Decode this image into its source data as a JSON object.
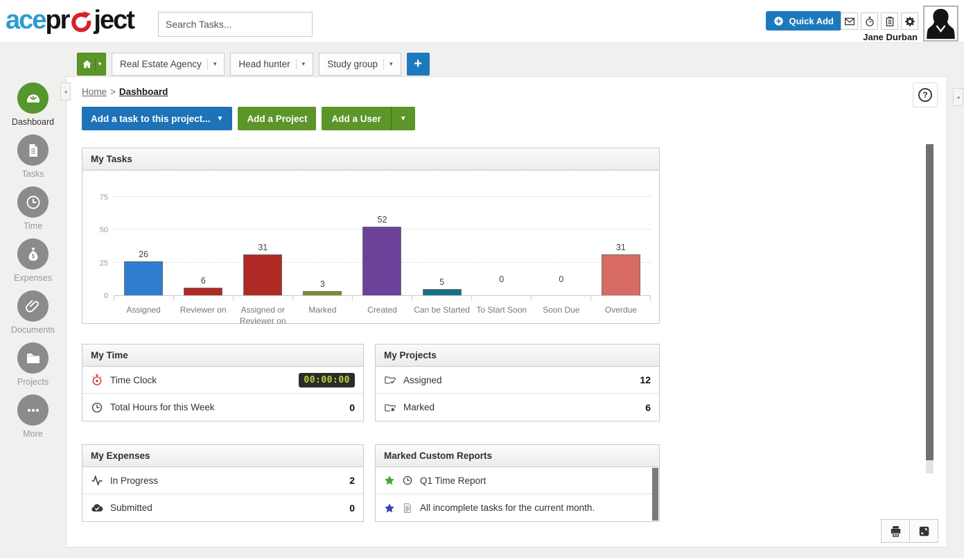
{
  "header": {
    "logo": {
      "ace": "ace",
      "pr": "pr",
      "ject": "ject"
    },
    "search_placeholder": "Search Tasks...",
    "quick_add_label": "Quick Add",
    "icon_buttons": [
      "mail",
      "stopwatch",
      "clipboard",
      "gear"
    ],
    "user_name": "Jane Durban"
  },
  "tabs": {
    "projects": [
      "Real Estate Agency",
      "Head hunter",
      "Study group"
    ],
    "add_label": "+"
  },
  "sidebar": {
    "items": [
      {
        "label": "Dashboard",
        "icon": "gauge",
        "active": true
      },
      {
        "label": "Tasks",
        "icon": "tasksdoc",
        "active": false
      },
      {
        "label": "Time",
        "icon": "clockwhite",
        "active": false
      },
      {
        "label": "Expenses",
        "icon": "moneybag",
        "active": false
      },
      {
        "label": "Documents",
        "icon": "paperclip",
        "active": false
      },
      {
        "label": "Projects",
        "icon": "folder",
        "active": false
      },
      {
        "label": "More",
        "icon": "ellipsis",
        "active": false
      }
    ]
  },
  "breadcrumb": {
    "home": "Home",
    "sep": ">",
    "current": "Dashboard"
  },
  "actions": {
    "add_task": "Add a task to this project...",
    "add_project": "Add a Project",
    "add_user": "Add a User"
  },
  "chart_data": {
    "type": "bar",
    "title": "My Tasks",
    "categories": [
      "Assigned",
      "Reviewer on",
      "Assigned or Reviewer on",
      "Marked",
      "Created",
      "Can be Started",
      "To Start Soon",
      "Soon Due",
      "Overdue"
    ],
    "values": [
      26,
      6,
      31,
      3,
      52,
      5,
      0,
      0,
      31
    ],
    "colors": [
      "#2e7dd1",
      "#b02a25",
      "#b02a25",
      "#7b8c2d",
      "#6b4299",
      "#17708a",
      "#cccccc",
      "#cccccc",
      "#d76b63"
    ],
    "yticks": [
      0,
      25,
      50,
      75
    ],
    "ylim": [
      0,
      80
    ],
    "grid": "dashed",
    "legend": "none"
  },
  "panels": {
    "my_time": {
      "title": "My Time",
      "rows": [
        {
          "icon": "stopwatch-red",
          "label": "Time Clock",
          "value": "00:00:00",
          "value_style": "digital"
        },
        {
          "icon": "clock",
          "label": "Total Hours for this Week",
          "value": "0"
        }
      ]
    },
    "my_projects": {
      "title": "My Projects",
      "rows": [
        {
          "icon": "folder-check",
          "label": "Assigned",
          "value": "12"
        },
        {
          "icon": "folder-star",
          "label": "Marked",
          "value": "6"
        }
      ]
    },
    "my_expenses": {
      "title": "My Expenses",
      "rows": [
        {
          "icon": "pulse",
          "label": "In Progress",
          "value": "2"
        },
        {
          "icon": "cloud-check",
          "label": "Submitted",
          "value": "0"
        }
      ]
    },
    "marked_custom_reports": {
      "title": "Marked Custom Reports",
      "rows": [
        {
          "star_color": "#3fa72c",
          "icon": "clock",
          "label": "Q1 Time Report"
        },
        {
          "star_color": "#3742b4",
          "icon": "report-doc",
          "label": "All incomplete tasks for the current month."
        }
      ]
    }
  },
  "help_label": "?",
  "colors": {
    "green": "#5c9528",
    "blue": "#1d79bd",
    "digital_bg": "#2b2b2b",
    "digital_text": "#b9d832",
    "logo_blue": "#2d9bd3",
    "logo_red": "#d2232a"
  }
}
